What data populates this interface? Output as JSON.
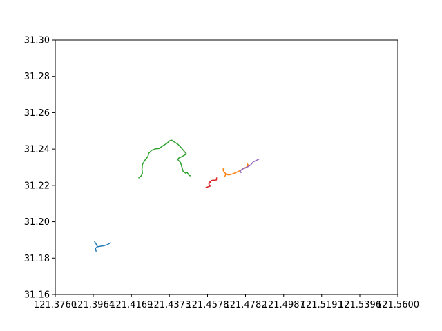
{
  "chart_data": {
    "type": "line",
    "title": "",
    "xlabel": "",
    "ylabel": "",
    "xlim": [
      121.376,
      121.56
    ],
    "ylim": [
      31.16,
      31.3
    ],
    "grid": false,
    "legend": false,
    "x_ticks": [
      {
        "value": 121.376,
        "label": "121.3760"
      },
      {
        "value": 121.3964,
        "label": "121.3964"
      },
      {
        "value": 121.4169,
        "label": "121.4169"
      },
      {
        "value": 121.4373,
        "label": "121.4373"
      },
      {
        "value": 121.4578,
        "label": "121.4578"
      },
      {
        "value": 121.4782,
        "label": "121.4782"
      },
      {
        "value": 121.4987,
        "label": "121.4987"
      },
      {
        "value": 121.5191,
        "label": "121.5191"
      },
      {
        "value": 121.5396,
        "label": "121.5396"
      },
      {
        "value": 121.56,
        "label": "121.5600"
      }
    ],
    "y_ticks": [
      {
        "value": 31.16,
        "label": "31.16"
      },
      {
        "value": 31.18,
        "label": "31.18"
      },
      {
        "value": 31.2,
        "label": "31.20"
      },
      {
        "value": 31.22,
        "label": "31.22"
      },
      {
        "value": 31.24,
        "label": "31.24"
      },
      {
        "value": 31.26,
        "label": "31.26"
      },
      {
        "value": 31.28,
        "label": "31.28"
      },
      {
        "value": 31.3,
        "label": "31.30"
      }
    ],
    "series": [
      {
        "color": "#1f77b4",
        "points": [
          [
            121.398,
            31.1836
          ],
          [
            121.3978,
            31.1844
          ],
          [
            121.3976,
            31.1854
          ],
          [
            121.3986,
            31.1862
          ],
          [
            121.4,
            31.1865
          ],
          [
            121.402,
            31.1868
          ],
          [
            121.404,
            31.1874
          ],
          [
            121.405,
            31.188
          ],
          [
            121.4059,
            31.1885
          ]
        ]
      },
      {
        "color": "#1f77b4",
        "points": [
          [
            121.3987,
            31.1862
          ],
          [
            121.3983,
            31.187
          ],
          [
            121.3978,
            31.188
          ],
          [
            121.397,
            31.1892
          ]
        ]
      },
      {
        "color": "#ff7f0e",
        "points": [
          [
            121.4663,
            31.2294
          ],
          [
            121.4662,
            31.2285
          ],
          [
            121.4666,
            31.2275
          ],
          [
            121.4675,
            31.2265
          ],
          [
            121.4681,
            31.2259
          ],
          [
            121.4694,
            31.2258
          ],
          [
            121.4712,
            31.2263
          ],
          [
            121.4733,
            31.2272
          ],
          [
            121.4752,
            31.2281
          ],
          [
            121.4771,
            31.2293
          ],
          [
            121.4789,
            31.2302
          ],
          [
            121.4797,
            31.2312
          ],
          [
            121.479,
            31.232
          ],
          [
            121.4791,
            31.2325
          ]
        ]
      },
      {
        "color": "#ff7f0e",
        "points": [
          [
            121.4676,
            31.2264
          ],
          [
            121.4671,
            31.2248
          ]
        ]
      },
      {
        "color": "#2ca02c",
        "points": [
          [
            121.4207,
            31.224
          ],
          [
            121.4222,
            31.2253
          ],
          [
            121.4228,
            31.2265
          ],
          [
            121.4226,
            31.229
          ],
          [
            121.4228,
            31.2315
          ],
          [
            121.4241,
            31.2338
          ],
          [
            121.4257,
            31.2358
          ],
          [
            121.4263,
            31.2378
          ],
          [
            121.4278,
            31.2393
          ],
          [
            121.43,
            31.2402
          ],
          [
            121.4318,
            31.2403
          ],
          [
            121.4338,
            31.2418
          ],
          [
            121.4358,
            31.243
          ],
          [
            121.4375,
            31.2446
          ],
          [
            121.4386,
            31.2449
          ],
          [
            121.4398,
            31.244
          ],
          [
            121.4418,
            31.2427
          ],
          [
            121.4432,
            31.2413
          ],
          [
            121.4447,
            31.2395
          ],
          [
            121.4465,
            31.2373
          ],
          [
            121.4445,
            31.2361
          ],
          [
            121.4423,
            31.235
          ],
          [
            121.4418,
            31.2342
          ],
          [
            121.4433,
            31.2326
          ],
          [
            121.444,
            31.2302
          ],
          [
            121.4447,
            31.2277
          ],
          [
            121.4461,
            31.2267
          ],
          [
            121.4468,
            31.2272
          ],
          [
            121.4479,
            31.2255
          ],
          [
            121.449,
            31.2252
          ]
        ]
      },
      {
        "color": "#d62728",
        "points": [
          [
            121.4567,
            31.2186
          ],
          [
            121.458,
            31.2192
          ],
          [
            121.4592,
            31.2196
          ],
          [
            121.4585,
            31.2207
          ],
          [
            121.4591,
            31.222
          ],
          [
            121.4601,
            31.2228
          ],
          [
            121.4614,
            31.2229
          ],
          [
            121.4626,
            31.223
          ],
          [
            121.4627,
            31.2244
          ]
        ]
      },
      {
        "color": "#d62728",
        "points": [
          [
            121.4595,
            31.222
          ],
          [
            121.4583,
            31.2209
          ]
        ]
      },
      {
        "color": "#9467bd",
        "points": [
          [
            121.4759,
            31.2268
          ],
          [
            121.4753,
            31.228
          ],
          [
            121.4769,
            31.2292
          ],
          [
            121.4781,
            31.2296
          ],
          [
            121.4795,
            31.2303
          ],
          [
            121.481,
            31.2312
          ],
          [
            121.4824,
            31.233
          ],
          [
            121.4838,
            31.2336
          ],
          [
            121.4855,
            31.2345
          ]
        ]
      }
    ]
  }
}
